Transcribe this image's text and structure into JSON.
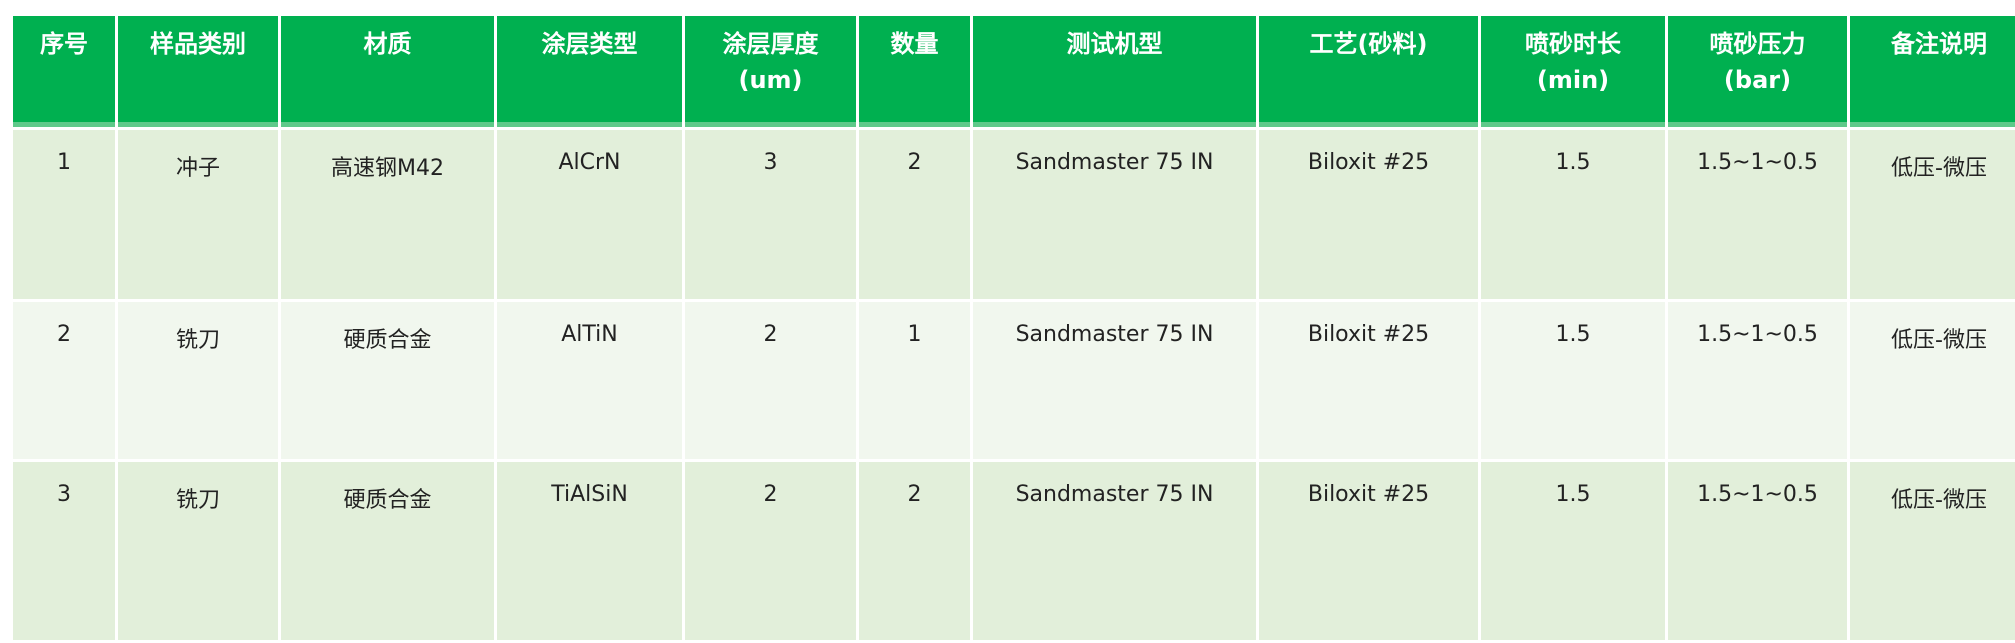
{
  "colors": {
    "header_bg": "#00b050",
    "row_odd_bg": "#e2efda",
    "row_even_bg": "#f1f7ee"
  },
  "headers": [
    {
      "label": "序号",
      "unit": ""
    },
    {
      "label": "样品类别",
      "unit": ""
    },
    {
      "label": "材质",
      "unit": ""
    },
    {
      "label": "涂层类型",
      "unit": ""
    },
    {
      "label": "涂层厚度",
      "unit": "(um)"
    },
    {
      "label": "数量",
      "unit": ""
    },
    {
      "label": "测试机型",
      "unit": ""
    },
    {
      "label": "工艺(砂料)",
      "unit": ""
    },
    {
      "label": "喷砂时长",
      "unit": "(min)"
    },
    {
      "label": "喷砂压力",
      "unit": "(bar)"
    },
    {
      "label": "备注说明",
      "unit": ""
    }
  ],
  "rows": [
    [
      "1",
      "冲子",
      "高速钢M42",
      "AlCrN",
      "3",
      "2",
      "Sandmaster 75 IN",
      "Biloxit #25",
      "1.5",
      "1.5~1~0.5",
      "低压-微压"
    ],
    [
      "2",
      "铣刀",
      "硬质合金",
      "AlTiN",
      "2",
      "1",
      "Sandmaster 75 IN",
      "Biloxit #25",
      "1.5",
      "1.5~1~0.5",
      "低压-微压"
    ],
    [
      "3",
      "铣刀",
      "硬质合金",
      "TiAlSiN",
      "2",
      "2",
      "Sandmaster 75 IN",
      "Biloxit #25",
      "1.5",
      "1.5~1~0.5",
      "低压-微压"
    ]
  ]
}
